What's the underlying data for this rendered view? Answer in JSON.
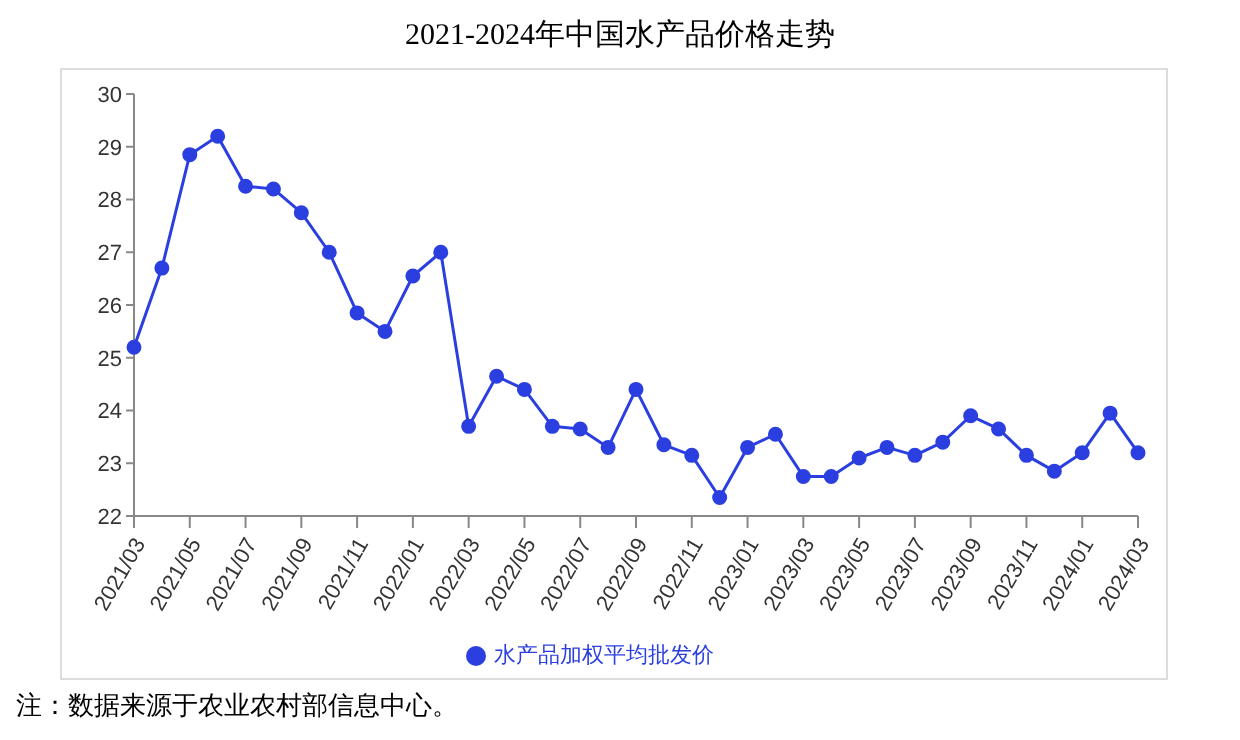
{
  "chart_data": {
    "type": "line",
    "title": "2021-2024年中国水产品价格走势",
    "categories": [
      "2021/03",
      null,
      "2021/05",
      null,
      "2021/07",
      null,
      "2021/09",
      null,
      "2021/11",
      null,
      "2022/01",
      null,
      "2022/03",
      null,
      "2022/05",
      null,
      "2022/07",
      null,
      "2022/09",
      null,
      "2022/11",
      null,
      "2023/01",
      null,
      "2023/03",
      null,
      "2023/05",
      null,
      "2023/07",
      null,
      "2023/09",
      null,
      "2023/11",
      null,
      "2024/01",
      null,
      "2024/03"
    ],
    "series": [
      {
        "name": "水产品加权平均批发价",
        "color": "#2b3fe0",
        "values": [
          25.2,
          26.7,
          28.85,
          29.2,
          28.25,
          28.2,
          27.75,
          27.0,
          25.85,
          25.5,
          26.55,
          27.0,
          23.7,
          24.65,
          24.4,
          23.7,
          23.65,
          23.3,
          24.4,
          23.35,
          23.15,
          22.35,
          23.3,
          23.55,
          22.75,
          22.75,
          23.1,
          23.3,
          23.15,
          23.4,
          23.9,
          23.65,
          23.15,
          22.85,
          23.2,
          23.95,
          23.2
        ]
      }
    ],
    "ylim": [
      22,
      30
    ],
    "yticks": [
      22,
      23,
      24,
      25,
      26,
      27,
      28,
      29,
      30
    ],
    "grid": false,
    "legend": "bottom",
    "marker": "circle",
    "line_style": "solid",
    "annotations": [
      "注：数据来源于农业农村部信息中心。"
    ]
  }
}
